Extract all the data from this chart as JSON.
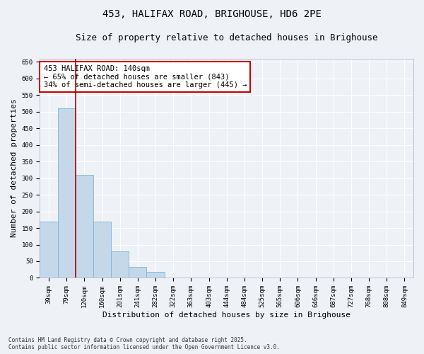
{
  "title": "453, HALIFAX ROAD, BRIGHOUSE, HD6 2PE",
  "subtitle": "Size of property relative to detached houses in Brighouse",
  "xlabel": "Distribution of detached houses by size in Brighouse",
  "ylabel": "Number of detached properties",
  "categories": [
    "39sqm",
    "79sqm",
    "120sqm",
    "160sqm",
    "201sqm",
    "241sqm",
    "282sqm",
    "322sqm",
    "363sqm",
    "403sqm",
    "444sqm",
    "484sqm",
    "525sqm",
    "565sqm",
    "606sqm",
    "646sqm",
    "687sqm",
    "727sqm",
    "768sqm",
    "808sqm",
    "849sqm"
  ],
  "values": [
    170,
    510,
    310,
    170,
    80,
    33,
    18,
    2,
    0,
    0,
    0,
    0,
    0,
    0,
    0,
    0,
    0,
    0,
    0,
    0,
    0
  ],
  "bar_color": "#c5d8ea",
  "bar_edge_color": "#7ab4d4",
  "vline_x_index": 1.5,
  "vline_color": "#aa0000",
  "annotation_text": "453 HALIFAX ROAD: 140sqm\n← 65% of detached houses are smaller (843)\n34% of semi-detached houses are larger (445) →",
  "annotation_box_color": "#ffffff",
  "annotation_box_edge": "#cc0000",
  "ylim": [
    0,
    660
  ],
  "yticks": [
    0,
    50,
    100,
    150,
    200,
    250,
    300,
    350,
    400,
    450,
    500,
    550,
    600,
    650
  ],
  "background_color": "#eef2f7",
  "grid_color": "#ffffff",
  "footer_line1": "Contains HM Land Registry data © Crown copyright and database right 2025.",
  "footer_line2": "Contains public sector information licensed under the Open Government Licence v3.0.",
  "title_fontsize": 10,
  "subtitle_fontsize": 9,
  "tick_fontsize": 6.5,
  "label_fontsize": 8,
  "annotation_fontsize": 7.5
}
